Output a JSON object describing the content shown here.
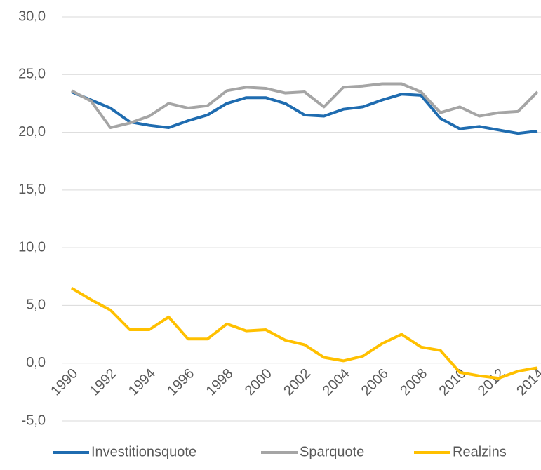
{
  "chart_data": {
    "type": "line",
    "categories": [
      "1990",
      null,
      "1992",
      null,
      "1994",
      null,
      "1996",
      null,
      "1998",
      null,
      "2000",
      null,
      "2002",
      null,
      "2004",
      null,
      "2006",
      null,
      "2008",
      null,
      "2010",
      null,
      "2012",
      null,
      "2014"
    ],
    "series": [
      {
        "name": "Investitionsquote",
        "color": "#1f6cb0",
        "values": [
          23.5,
          22.8,
          22.1,
          20.9,
          20.6,
          20.4,
          21.0,
          21.5,
          22.5,
          23.0,
          23.0,
          22.5,
          21.5,
          21.4,
          22.0,
          22.2,
          22.8,
          23.3,
          23.2,
          21.2,
          20.3,
          20.5,
          20.2,
          19.9,
          20.1
        ]
      },
      {
        "name": "Sparquote",
        "color": "#a5a5a5",
        "values": [
          23.6,
          22.7,
          20.4,
          20.8,
          21.4,
          22.5,
          22.1,
          22.3,
          23.6,
          23.9,
          23.8,
          23.4,
          23.5,
          22.2,
          23.9,
          24.0,
          24.2,
          24.2,
          23.5,
          21.7,
          22.2,
          21.4,
          21.7,
          21.8,
          23.5
        ]
      },
      {
        "name": "Realzins",
        "color": "#ffc000",
        "values": [
          6.5,
          5.5,
          4.6,
          2.9,
          2.9,
          4.0,
          2.1,
          2.1,
          3.4,
          2.8,
          2.9,
          2.0,
          1.6,
          0.5,
          0.2,
          0.6,
          1.7,
          2.5,
          1.4,
          1.1,
          -0.8,
          -1.1,
          -1.3,
          -0.7,
          -0.4
        ]
      }
    ],
    "ylim": [
      -5,
      30
    ],
    "yticks": [
      {
        "value": -5,
        "label": "-5,0"
      },
      {
        "value": 0,
        "label": "0,0"
      },
      {
        "value": 5,
        "label": "5,0"
      },
      {
        "value": 10,
        "label": "10,0"
      },
      {
        "value": 15,
        "label": "15,0"
      },
      {
        "value": 20,
        "label": "20,0"
      },
      {
        "value": 25,
        "label": "25,0"
      },
      {
        "value": 30,
        "label": "30,0"
      }
    ],
    "grid": true,
    "legend": "bottom"
  }
}
